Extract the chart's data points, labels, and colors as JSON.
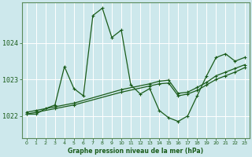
{
  "title": "Graphe pression niveau de la mer (hPa)",
  "bg_color": "#cde8ec",
  "grid_color": "#b0d8de",
  "line_color": "#1a5c1a",
  "ylabel_ticks": [
    1022,
    1023,
    1024
  ],
  "xlim": [
    -0.5,
    23.5
  ],
  "ylim": [
    1021.4,
    1025.1
  ],
  "x_ticks": [
    0,
    1,
    2,
    3,
    4,
    5,
    6,
    7,
    8,
    9,
    10,
    11,
    12,
    13,
    14,
    15,
    16,
    17,
    18,
    19,
    20,
    21,
    22,
    23
  ],
  "series1_x": [
    0,
    1,
    2,
    3,
    4,
    5,
    6,
    7,
    8,
    9,
    10,
    11,
    12,
    13,
    14,
    15,
    16,
    17,
    18,
    19,
    20,
    21,
    22,
    23
  ],
  "series1_y": [
    1022.05,
    1022.05,
    1022.2,
    1022.3,
    1023.35,
    1022.75,
    1022.55,
    1024.75,
    1024.95,
    1024.15,
    1024.35,
    1022.85,
    1022.6,
    1022.75,
    1022.15,
    1021.95,
    1021.85,
    1022.0,
    1022.55,
    1023.1,
    1023.6,
    1023.7,
    1023.5,
    1023.6
  ],
  "series2_x": [
    0,
    1,
    3,
    5,
    10,
    13,
    14,
    15,
    16,
    17,
    18,
    19,
    20,
    21,
    22,
    23
  ],
  "series2_y": [
    1022.05,
    1022.1,
    1022.2,
    1022.3,
    1022.65,
    1022.82,
    1022.88,
    1022.9,
    1022.55,
    1022.6,
    1022.7,
    1022.85,
    1023.0,
    1023.1,
    1023.2,
    1023.32
  ],
  "series3_x": [
    0,
    1,
    3,
    5,
    10,
    13,
    14,
    15,
    16,
    17,
    18,
    19,
    20,
    21,
    22,
    23
  ],
  "series3_y": [
    1022.1,
    1022.15,
    1022.25,
    1022.35,
    1022.72,
    1022.88,
    1022.95,
    1022.98,
    1022.62,
    1022.65,
    1022.78,
    1022.92,
    1023.1,
    1023.2,
    1023.3,
    1023.4
  ]
}
